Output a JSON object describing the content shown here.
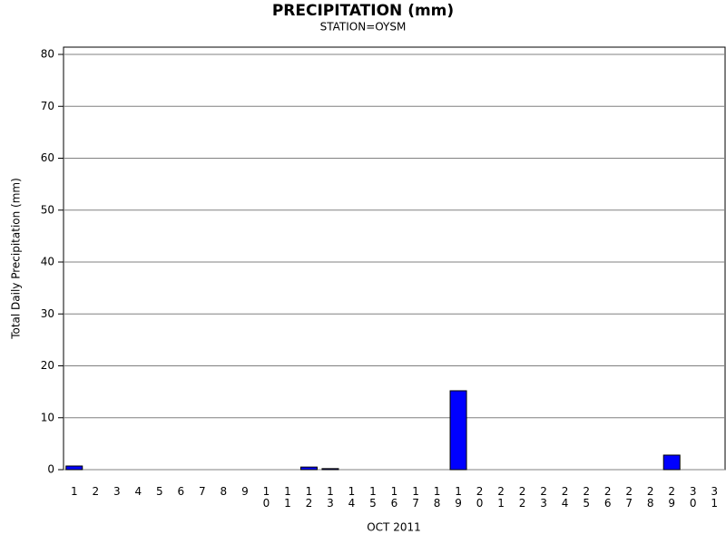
{
  "chart_data": {
    "type": "bar",
    "title": "PRECIPITATION (mm)",
    "subtitle": "STATION=OYSM",
    "x_label": "OCT 2011",
    "y_label": "Total Daily Precipitation (mm)",
    "categories": [
      "1",
      "2",
      "3",
      "4",
      "5",
      "6",
      "7",
      "8",
      "9",
      "10",
      "11",
      "12",
      "13",
      "14",
      "15",
      "16",
      "17",
      "18",
      "19",
      "20",
      "21",
      "22",
      "23",
      "24",
      "25",
      "26",
      "27",
      "28",
      "29",
      "30",
      "31"
    ],
    "values": [
      0.7,
      0,
      0,
      0,
      0,
      0,
      0,
      0,
      0,
      0,
      0,
      0.5,
      0.2,
      0,
      0,
      0,
      0,
      0,
      15.2,
      0,
      0,
      0,
      0,
      0,
      0,
      0,
      0,
      0,
      2.8,
      0,
      0
    ],
    "color": "#0000ff",
    "ylim": [
      0,
      81.4
    ],
    "yticks": [
      0,
      10,
      20,
      30,
      40,
      50,
      60,
      70,
      80
    ],
    "grid": true
  }
}
